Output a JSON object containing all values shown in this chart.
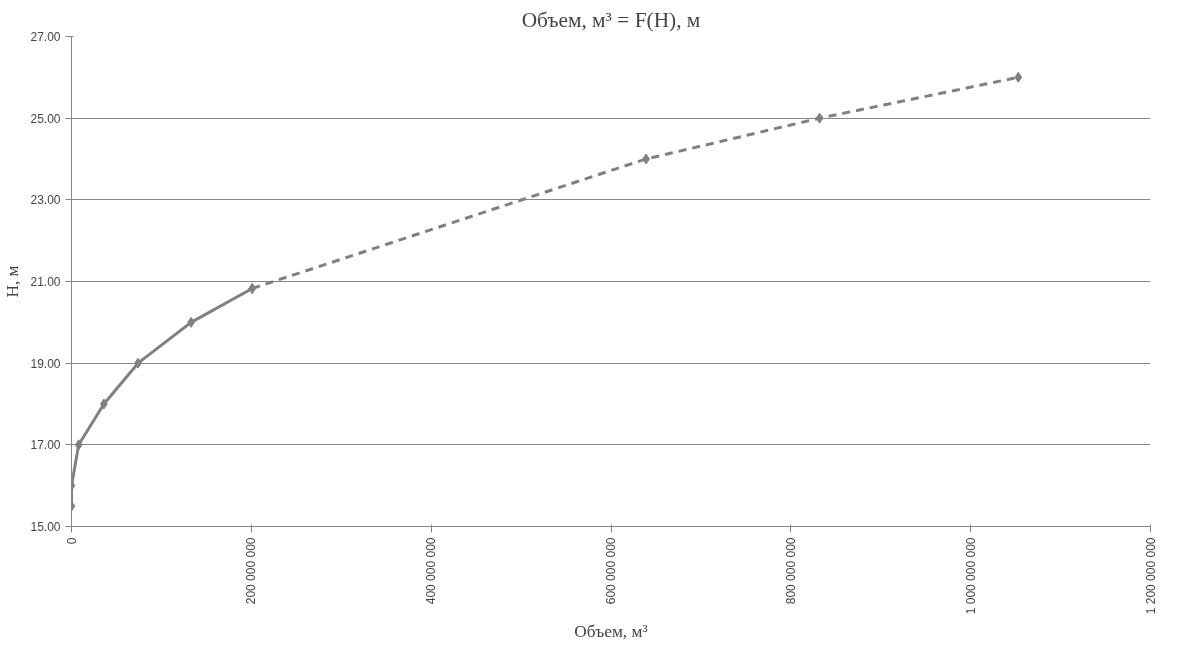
{
  "chart_data": {
    "type": "line",
    "title": "Объем, м³ = F(H), м",
    "xlabel": "Объем, м³",
    "ylabel": "H, м",
    "xlim": [
      0,
      1200000000
    ],
    "xticks": [
      {
        "value": 0,
        "label": "0"
      },
      {
        "value": 200000000,
        "label": "200 000 000"
      },
      {
        "value": 400000000,
        "label": "400 000 000"
      },
      {
        "value": 600000000,
        "label": "600 000 000"
      },
      {
        "value": 800000000,
        "label": "800 000 000"
      },
      {
        "value": 1000000000,
        "label": "1 000 000 000"
      },
      {
        "value": 1200000000,
        "label": "1 200 000 000"
      }
    ],
    "ylim": [
      15,
      27
    ],
    "yticks": [
      {
        "value": 15,
        "label": "15.00"
      },
      {
        "value": 17,
        "label": "17.00"
      },
      {
        "value": 19,
        "label": "19.00"
      },
      {
        "value": 21,
        "label": "21.00"
      },
      {
        "value": 23,
        "label": "23.00"
      },
      {
        "value": 25,
        "label": "25.00"
      },
      {
        "value": 27,
        "label": "27.00"
      }
    ],
    "grid": "y",
    "marker": "diamond",
    "series": [
      {
        "color": "#808080",
        "line_style": "solid",
        "x": [
          0,
          0,
          8000000,
          36000000,
          74000000,
          133000000,
          201000000
        ],
        "values": [
          15.5,
          16,
          17,
          18,
          19,
          20,
          20.83
        ]
      },
      {
        "color": "#808080",
        "line_style": "dashed",
        "x": [
          201000000,
          639000000,
          832000000,
          1053000000
        ],
        "values": [
          20.83,
          24,
          25,
          26
        ]
      }
    ]
  }
}
